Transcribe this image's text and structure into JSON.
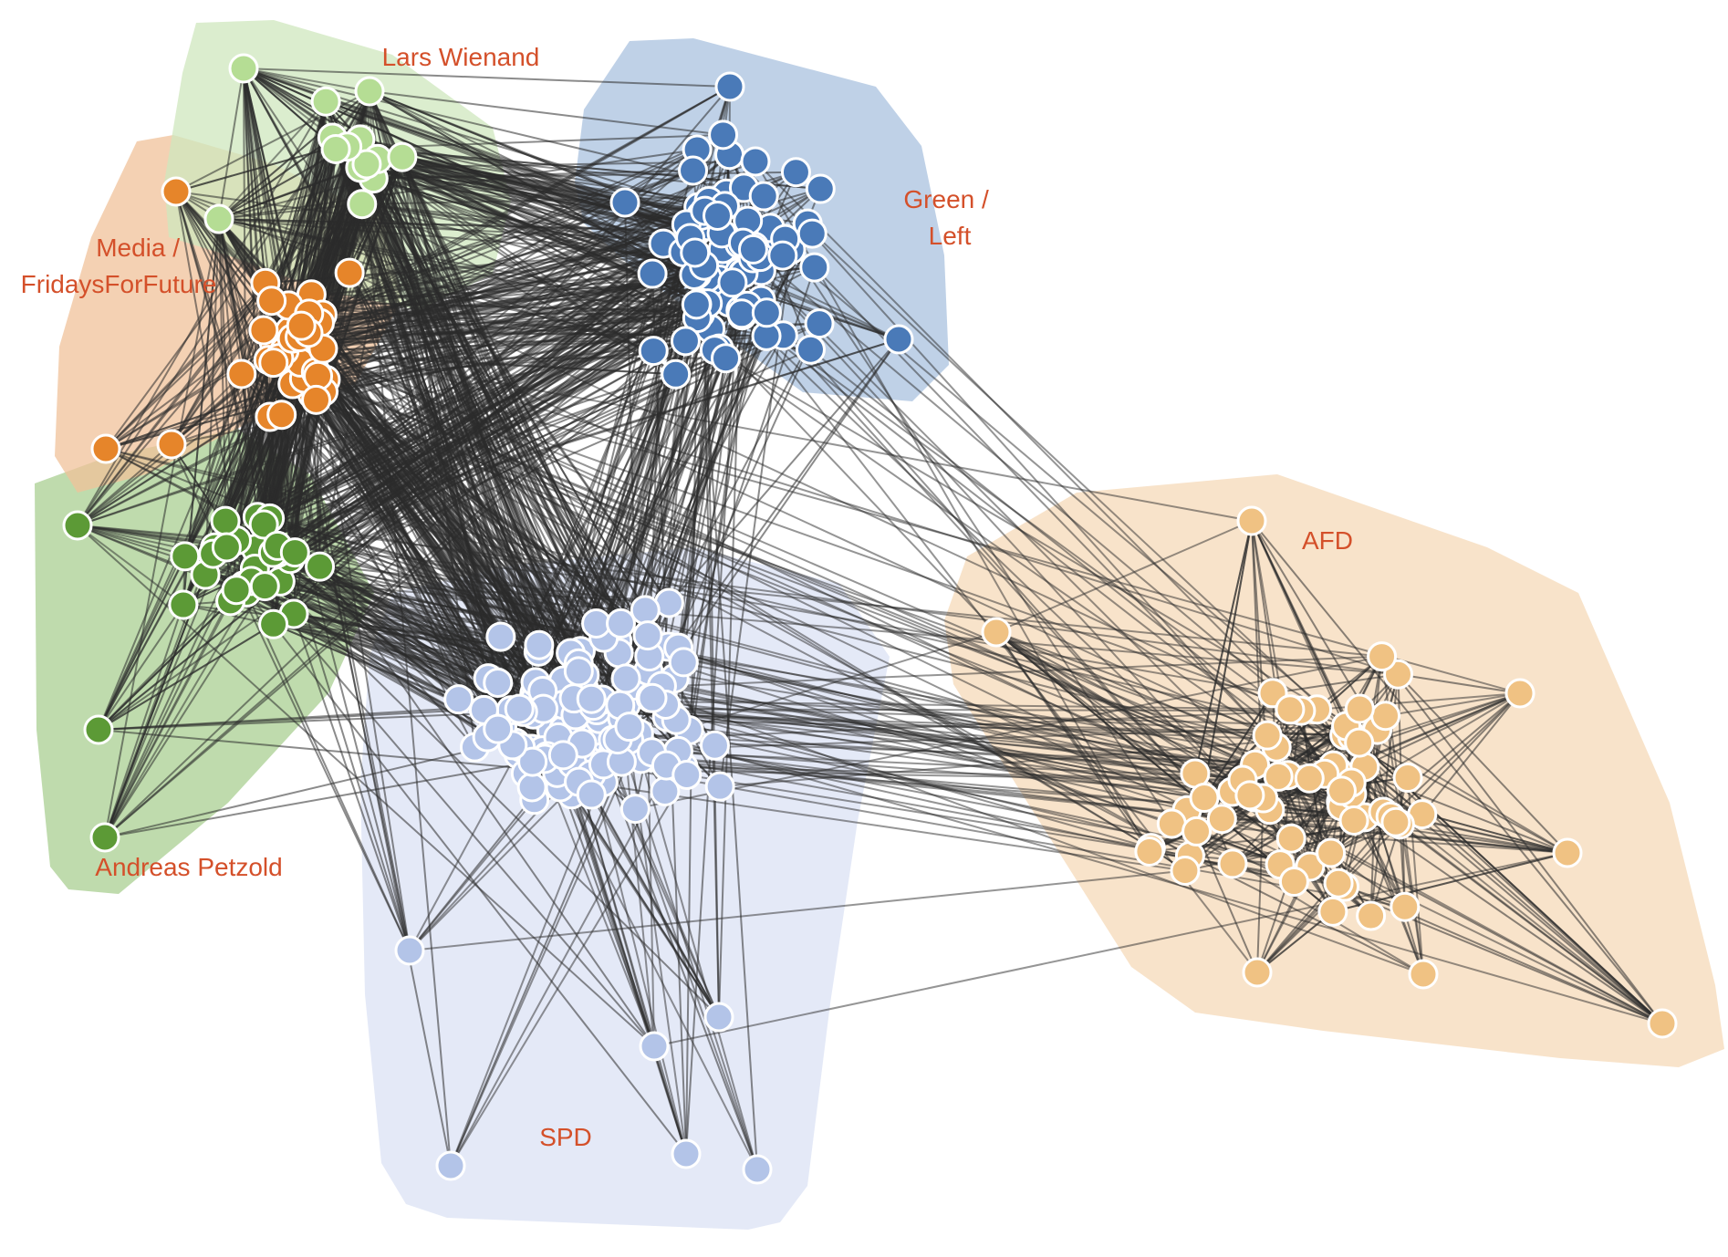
{
  "clusters": [
    {
      "id": "lars-wienand",
      "label": "Lars Wienand",
      "node_color": "#b5dd94",
      "hull_color": "#cfe7bd",
      "node_count": 14
    },
    {
      "id": "media-fff",
      "label": "Media / FridaysForFuture",
      "node_color": "#e6852a",
      "hull_color": "#f0c29a",
      "node_count": 42
    },
    {
      "id": "andreas-petzold",
      "label": "Andreas Petzold",
      "node_color": "#5c9a36",
      "hull_color": "#a9cf92",
      "node_count": 32
    },
    {
      "id": "green-left",
      "label": "Green / Left",
      "node_color": "#4a7ab8",
      "hull_color": "#a9c2df",
      "node_count": 80
    },
    {
      "id": "spd",
      "label": "SPD",
      "node_color": "#b3c4e8",
      "hull_color": "#dbe2f4",
      "node_count": 150
    },
    {
      "id": "afd",
      "label": "AFD",
      "node_color": "#f0c283",
      "hull_color": "#f5dab8",
      "node_count": 70
    }
  ],
  "edge_color": "#2b2b2b",
  "label_color": "#d4502a"
}
